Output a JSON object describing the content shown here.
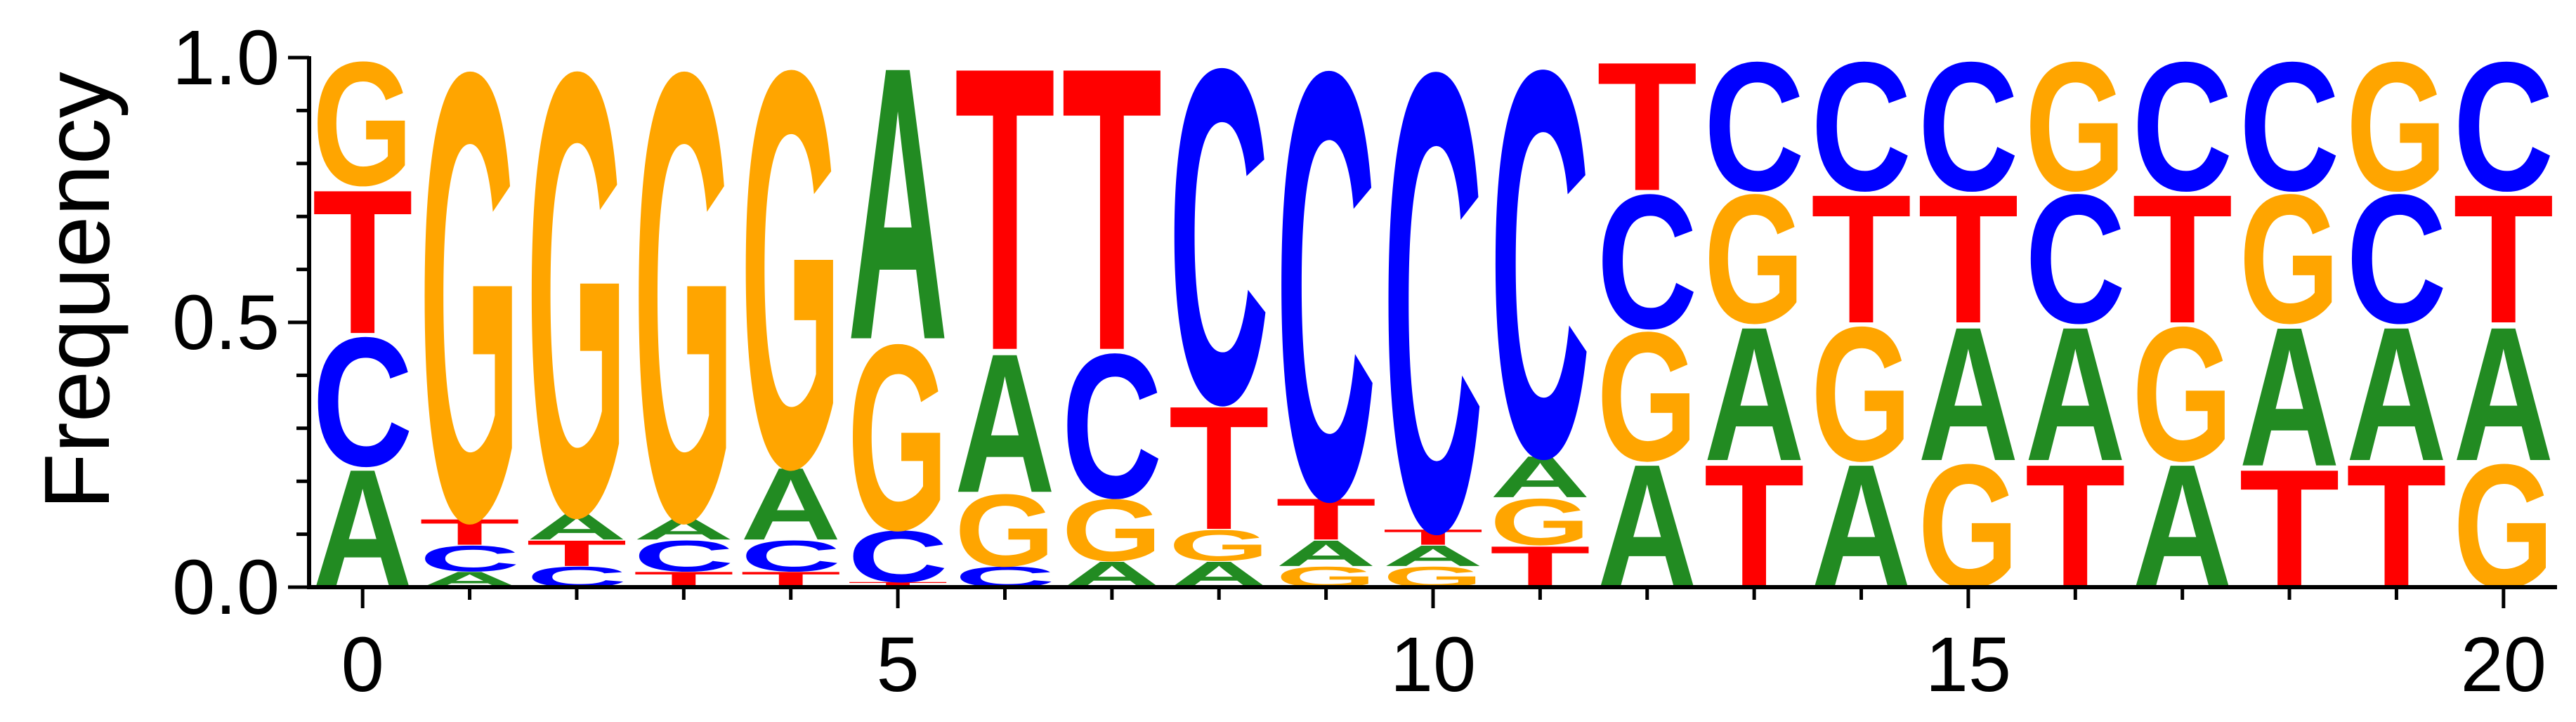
{
  "chart_data": {
    "type": "sequence-logo",
    "ylabel": "Frequency",
    "xlabel": "",
    "ylim": [
      0,
      1
    ],
    "xlim": [
      -0.5,
      20.5
    ],
    "xticks": [
      "0",
      "5",
      "10",
      "15",
      "20"
    ],
    "xtick_values": [
      0,
      5,
      10,
      15,
      20
    ],
    "yticks": [
      "0.0",
      "0.5",
      "1.0"
    ],
    "ytick_values": [
      0,
      0.5,
      1.0
    ],
    "ytick_minor_values": [
      0.1,
      0.2,
      0.3,
      0.4,
      0.6,
      0.7,
      0.8,
      0.9
    ],
    "colors": {
      "A": "#228B22",
      "C": "#0000FF",
      "G": "#FFA500",
      "T": "#FF0000"
    },
    "positions": [
      {
        "pos": 0,
        "freqs": {
          "A": 0.23,
          "C": 0.25,
          "T": 0.28,
          "G": 0.24
        }
      },
      {
        "pos": 1,
        "freqs": {
          "A": 0.03,
          "C": 0.05,
          "T": 0.05,
          "G": 0.87
        }
      },
      {
        "pos": 2,
        "freqs": {
          "C": 0.04,
          "T": 0.05,
          "A": 0.05,
          "G": 0.86
        }
      },
      {
        "pos": 3,
        "freqs": {
          "T": 0.03,
          "C": 0.06,
          "A": 0.04,
          "G": 0.87
        }
      },
      {
        "pos": 4,
        "freqs": {
          "T": 0.03,
          "C": 0.06,
          "A": 0.14,
          "G": 0.77
        }
      },
      {
        "pos": 5,
        "freqs": {
          "T": 0.01,
          "C": 0.1,
          "G": 0.36,
          "A": 0.53
        }
      },
      {
        "pos": 6,
        "freqs": {
          "C": 0.04,
          "G": 0.14,
          "A": 0.27,
          "T": 0.55
        }
      },
      {
        "pos": 7,
        "freqs": {
          "A": 0.05,
          "G": 0.12,
          "C": 0.28,
          "T": 0.55
        }
      },
      {
        "pos": 8,
        "freqs": {
          "A": 0.05,
          "G": 0.06,
          "T": 0.24,
          "C": 0.65
        }
      },
      {
        "pos": 9,
        "freqs": {
          "G": 0.04,
          "A": 0.05,
          "T": 0.08,
          "C": 0.83
        }
      },
      {
        "pos": 10,
        "freqs": {
          "G": 0.04,
          "A": 0.04,
          "T": 0.03,
          "C": 0.89
        }
      },
      {
        "pos": 11,
        "freqs": {
          "T": 0.08,
          "G": 0.09,
          "A": 0.08,
          "C": 0.75
        }
      },
      {
        "pos": 12,
        "freqs": {
          "A": 0.24,
          "G": 0.25,
          "C": 0.26,
          "T": 0.25
        }
      },
      {
        "pos": 13,
        "freqs": {
          "T": 0.24,
          "A": 0.26,
          "G": 0.25,
          "C": 0.25
        }
      },
      {
        "pos": 14,
        "freqs": {
          "A": 0.24,
          "G": 0.26,
          "T": 0.25,
          "C": 0.25
        }
      },
      {
        "pos": 15,
        "freqs": {
          "G": 0.24,
          "A": 0.26,
          "T": 0.25,
          "C": 0.25
        }
      },
      {
        "pos": 16,
        "freqs": {
          "T": 0.24,
          "A": 0.26,
          "C": 0.25,
          "G": 0.25
        }
      },
      {
        "pos": 17,
        "freqs": {
          "A": 0.24,
          "G": 0.26,
          "T": 0.25,
          "C": 0.25
        }
      },
      {
        "pos": 18,
        "freqs": {
          "T": 0.23,
          "A": 0.27,
          "G": 0.25,
          "C": 0.25
        }
      },
      {
        "pos": 19,
        "freqs": {
          "T": 0.24,
          "A": 0.26,
          "C": 0.25,
          "G": 0.25
        }
      },
      {
        "pos": 20,
        "freqs": {
          "G": 0.24,
          "A": 0.26,
          "T": 0.25,
          "C": 0.25
        }
      }
    ]
  }
}
